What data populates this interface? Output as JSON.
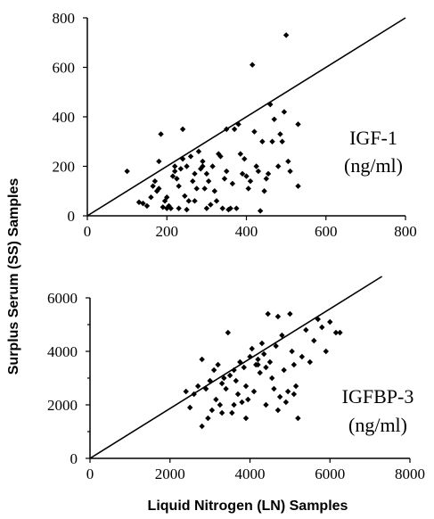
{
  "chart_data": {
    "shared": {
      "ylabel": "Surplus Serum  (SS) Samples",
      "xlabel": "Liquid Nitrogen (LN) Samples"
    },
    "panels": [
      {
        "type": "scatter",
        "annotation": [
          "IGF-1",
          "(ng/ml)"
        ],
        "xlim": [
          0,
          800
        ],
        "ylim": [
          0,
          800
        ],
        "xticks": [
          "0",
          "200",
          "400",
          "600",
          "800"
        ],
        "yticks": [
          "0",
          "200",
          "400",
          "600",
          "800"
        ],
        "line": [
          [
            0,
            0
          ],
          [
            800,
            800
          ]
        ],
        "points": [
          [
            100,
            180
          ],
          [
            130,
            55
          ],
          [
            140,
            50
          ],
          [
            150,
            40
          ],
          [
            160,
            75
          ],
          [
            165,
            120
          ],
          [
            170,
            140
          ],
          [
            175,
            100
          ],
          [
            180,
            110
          ],
          [
            180,
            220
          ],
          [
            185,
            330
          ],
          [
            190,
            35
          ],
          [
            195,
            60
          ],
          [
            200,
            30
          ],
          [
            200,
            75
          ],
          [
            205,
            40
          ],
          [
            210,
            30
          ],
          [
            215,
            160
          ],
          [
            220,
            180
          ],
          [
            220,
            200
          ],
          [
            225,
            150
          ],
          [
            230,
            120
          ],
          [
            230,
            30
          ],
          [
            235,
            190
          ],
          [
            240,
            230
          ],
          [
            240,
            350
          ],
          [
            245,
            80
          ],
          [
            250,
            25
          ],
          [
            250,
            200
          ],
          [
            255,
            60
          ],
          [
            260,
            240
          ],
          [
            265,
            140
          ],
          [
            270,
            60
          ],
          [
            270,
            170
          ],
          [
            275,
            110
          ],
          [
            280,
            260
          ],
          [
            285,
            190
          ],
          [
            290,
            200
          ],
          [
            290,
            220
          ],
          [
            295,
            110
          ],
          [
            300,
            30
          ],
          [
            300,
            170
          ],
          [
            305,
            140
          ],
          [
            310,
            45
          ],
          [
            315,
            200
          ],
          [
            320,
            100
          ],
          [
            325,
            60
          ],
          [
            330,
            250
          ],
          [
            335,
            240
          ],
          [
            340,
            30
          ],
          [
            345,
            150
          ],
          [
            350,
            350
          ],
          [
            350,
            180
          ],
          [
            355,
            25
          ],
          [
            360,
            30
          ],
          [
            365,
            130
          ],
          [
            370,
            350
          ],
          [
            375,
            30
          ],
          [
            380,
            370
          ],
          [
            385,
            250
          ],
          [
            390,
            170
          ],
          [
            395,
            230
          ],
          [
            400,
            160
          ],
          [
            405,
            110
          ],
          [
            410,
            140
          ],
          [
            415,
            610
          ],
          [
            420,
            340
          ],
          [
            425,
            200
          ],
          [
            430,
            180
          ],
          [
            435,
            20
          ],
          [
            440,
            300
          ],
          [
            445,
            100
          ],
          [
            450,
            150
          ],
          [
            455,
            170
          ],
          [
            460,
            450
          ],
          [
            465,
            300
          ],
          [
            470,
            390
          ],
          [
            480,
            200
          ],
          [
            485,
            330
          ],
          [
            490,
            300
          ],
          [
            495,
            420
          ],
          [
            500,
            730
          ],
          [
            505,
            220
          ],
          [
            510,
            180
          ],
          [
            530,
            370
          ],
          [
            530,
            120
          ]
        ]
      },
      {
        "type": "scatter",
        "annotation": [
          "IGFBP-3",
          "(ng/ml)"
        ],
        "xlim": [
          0,
          8000
        ],
        "ylim": [
          0,
          6000
        ],
        "xticks": [
          "0",
          "2000",
          "4000",
          "6000",
          "8000"
        ],
        "yticks": [
          "0",
          "2000",
          "4000",
          "6000"
        ],
        "line": [
          [
            0,
            0
          ],
          [
            7300,
            6800
          ]
        ],
        "points": [
          [
            2400,
            2500
          ],
          [
            2500,
            1900
          ],
          [
            2600,
            2400
          ],
          [
            2700,
            2700
          ],
          [
            2800,
            1200
          ],
          [
            2800,
            3700
          ],
          [
            2900,
            2600
          ],
          [
            2950,
            1500
          ],
          [
            3000,
            2900
          ],
          [
            3050,
            1800
          ],
          [
            3100,
            3300
          ],
          [
            3150,
            2200
          ],
          [
            3200,
            3500
          ],
          [
            3250,
            2000
          ],
          [
            3300,
            2800
          ],
          [
            3350,
            3000
          ],
          [
            3400,
            2600
          ],
          [
            3450,
            4700
          ],
          [
            3500,
            3100
          ],
          [
            3550,
            1700
          ],
          [
            3600,
            3300
          ],
          [
            3650,
            2900
          ],
          [
            3700,
            2400
          ],
          [
            3750,
            3600
          ],
          [
            3800,
            2100
          ],
          [
            3850,
            3400
          ],
          [
            3900,
            2700
          ],
          [
            3950,
            2200
          ],
          [
            4000,
            3800
          ],
          [
            4050,
            4100
          ],
          [
            4100,
            2500
          ],
          [
            4150,
            3500
          ],
          [
            4200,
            3700
          ],
          [
            4250,
            3200
          ],
          [
            4300,
            4300
          ],
          [
            4350,
            3900
          ],
          [
            4400,
            3400
          ],
          [
            4450,
            5400
          ],
          [
            4500,
            3600
          ],
          [
            4550,
            3000
          ],
          [
            4600,
            2600
          ],
          [
            4650,
            4200
          ],
          [
            4700,
            5300
          ],
          [
            4750,
            2300
          ],
          [
            4800,
            4600
          ],
          [
            4850,
            3300
          ],
          [
            4900,
            2100
          ],
          [
            4950,
            2500
          ],
          [
            5000,
            5400
          ],
          [
            5050,
            4000
          ],
          [
            5100,
            3500
          ],
          [
            5150,
            2700
          ],
          [
            5200,
            1500
          ],
          [
            5300,
            3800
          ],
          [
            5400,
            4800
          ],
          [
            5500,
            3600
          ],
          [
            5600,
            4400
          ],
          [
            5700,
            5200
          ],
          [
            5800,
            4900
          ],
          [
            5900,
            4000
          ],
          [
            6000,
            5100
          ],
          [
            6150,
            4700
          ],
          [
            6250,
            4700
          ],
          [
            4400,
            2000
          ],
          [
            3900,
            1500
          ],
          [
            3600,
            2000
          ],
          [
            4700,
            1800
          ],
          [
            5100,
            2400
          ],
          [
            3300,
            1700
          ],
          [
            4200,
            3500
          ]
        ]
      }
    ]
  }
}
